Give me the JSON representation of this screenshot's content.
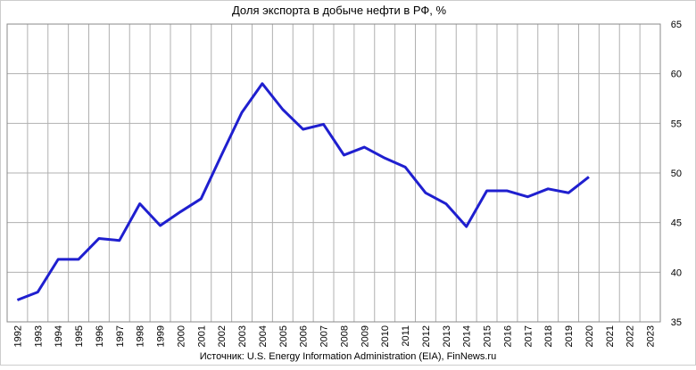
{
  "chart_data": {
    "type": "line",
    "title": "Доля экспорта в добыче нефти в РФ, %",
    "source": "Источник: U.S. Energy Information Administration (EIA), FinNews.ru",
    "categories": [
      "1992",
      "1993",
      "1994",
      "1995",
      "1996",
      "1997",
      "1998",
      "1999",
      "2000",
      "2001",
      "2002",
      "2003",
      "2004",
      "2005",
      "2006",
      "2007",
      "2008",
      "2009",
      "2010",
      "2011",
      "2012",
      "2013",
      "2014",
      "2015",
      "2016",
      "2017",
      "2018",
      "2019",
      "2020",
      "2021",
      "2022",
      "2023"
    ],
    "series": [
      {
        "name": "Доля экспорта",
        "color": "#1f1fcf",
        "values": [
          37.2,
          38.0,
          41.3,
          41.3,
          43.4,
          43.2,
          46.9,
          44.7,
          46.1,
          47.4,
          51.8,
          56.1,
          59.0,
          56.4,
          54.4,
          54.9,
          51.8,
          52.6,
          51.5,
          50.6,
          48.0,
          46.9,
          44.6,
          48.2,
          48.2,
          47.6,
          48.4,
          48.0,
          49.6,
          null,
          null,
          null
        ]
      }
    ],
    "ylim": [
      35,
      65
    ],
    "yticks": [
      35,
      40,
      45,
      50,
      55,
      60,
      65
    ],
    "grid": true
  }
}
